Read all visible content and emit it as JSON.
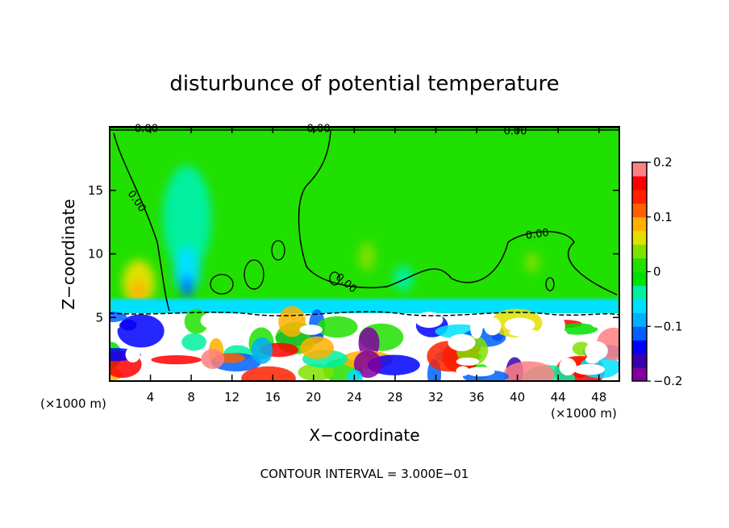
{
  "chart_data": {
    "type": "heatmap",
    "title": "disturbunce of potential temperature",
    "xlabel": "X−coordinate",
    "ylabel": "Z−coordinate",
    "x_unit_left": "(×1000 m)",
    "x_unit_right": "(×1000 m)",
    "xlim": [
      0,
      50
    ],
    "ylim": [
      0,
      20
    ],
    "x_ticks": [
      4,
      8,
      12,
      16,
      20,
      24,
      28,
      32,
      36,
      40,
      44,
      48
    ],
    "y_ticks": [
      5,
      10,
      15
    ],
    "colorbar": {
      "range": [
        -0.2,
        0.2
      ],
      "tick_values": [
        0.2,
        0.1,
        0,
        -0.1,
        -0.2
      ],
      "tick_labels": [
        "0.2",
        "0.1",
        "0",
        "−0.1",
        "−0.2"
      ],
      "colors": [
        "#8000a0",
        "#3a00b0",
        "#0000ff",
        "#0060ff",
        "#00b0ff",
        "#00e0ff",
        "#00f0a0",
        "#00e000",
        "#20e000",
        "#80e000",
        "#e0e000",
        "#ffb000",
        "#ff6000",
        "#ff2000",
        "#ff0000",
        "#ff8080"
      ]
    },
    "contour_labels": [
      {
        "text": "0.00",
        "x": 3.6,
        "y": 19.6,
        "rotate": 0
      },
      {
        "text": "0.00",
        "x": 20.5,
        "y": 19.6,
        "rotate": 0
      },
      {
        "text": "0.00",
        "x": 39.8,
        "y": 19.4,
        "rotate": 0
      },
      {
        "text": "0.00",
        "x": 2.4,
        "y": 14.0,
        "rotate": 55
      },
      {
        "text": "0.00",
        "x": 42.0,
        "y": 11.3,
        "rotate": -8
      },
      {
        "text": "0.00",
        "x": 23.0,
        "y": 7.5,
        "rotate": 40
      }
    ],
    "contour_interval_text": "CONTOUR INTERVAL = 3.000E−01",
    "grid": false,
    "legend": "right"
  }
}
